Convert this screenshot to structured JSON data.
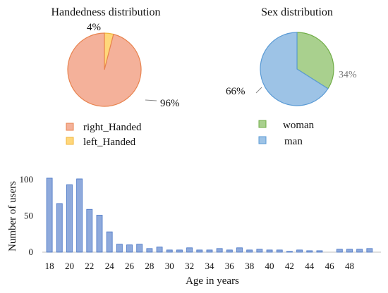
{
  "chart_data": [
    {
      "type": "pie",
      "title": "Handedness distribution",
      "categories": [
        "right_Handed",
        "left_Handed"
      ],
      "values": [
        96,
        4
      ],
      "labels": [
        "96%",
        "4%"
      ],
      "colors": [
        "#f4b19a",
        "#ffd77a"
      ],
      "stroke_colors": [
        "#e8834e",
        "#f0b43c"
      ],
      "legend": {
        "position": "bottom"
      }
    },
    {
      "type": "pie",
      "title": "Sex distribution",
      "categories": [
        "woman",
        "man"
      ],
      "values": [
        34,
        66
      ],
      "labels": [
        "34%",
        "66%"
      ],
      "colors": [
        "#a9d08e",
        "#9dc3e6"
      ],
      "stroke_colors": [
        "#70ad47",
        "#5b9bd5"
      ],
      "legend": {
        "position": "right"
      }
    },
    {
      "type": "bar",
      "xlabel": "Age in years",
      "ylabel": "Number of users",
      "ylim": [
        0,
        100
      ],
      "yticks": [
        "0",
        "50",
        "100"
      ],
      "x": [
        18,
        19,
        20,
        21,
        22,
        23,
        24,
        25,
        26,
        27,
        28,
        29,
        30,
        31,
        32,
        33,
        34,
        35,
        36,
        37,
        38,
        39,
        40,
        41,
        42,
        43,
        44,
        45,
        46,
        47,
        48,
        49,
        50
      ],
      "xtick_labels": [
        "18",
        "20",
        "22",
        "24",
        "26",
        "28",
        "30",
        "32",
        "34",
        "36",
        "38",
        "40",
        "42",
        "44",
        "46",
        "48"
      ],
      "values": [
        102,
        67,
        93,
        101,
        59,
        51,
        28,
        11,
        10,
        11,
        5,
        7,
        3,
        3,
        6,
        3,
        3,
        5,
        3,
        6,
        3,
        4,
        3,
        3,
        1,
        3,
        2,
        2,
        0,
        4,
        4,
        4,
        5
      ],
      "color": "#8faadc",
      "edge_color": "#4472c4",
      "grid": false
    }
  ]
}
